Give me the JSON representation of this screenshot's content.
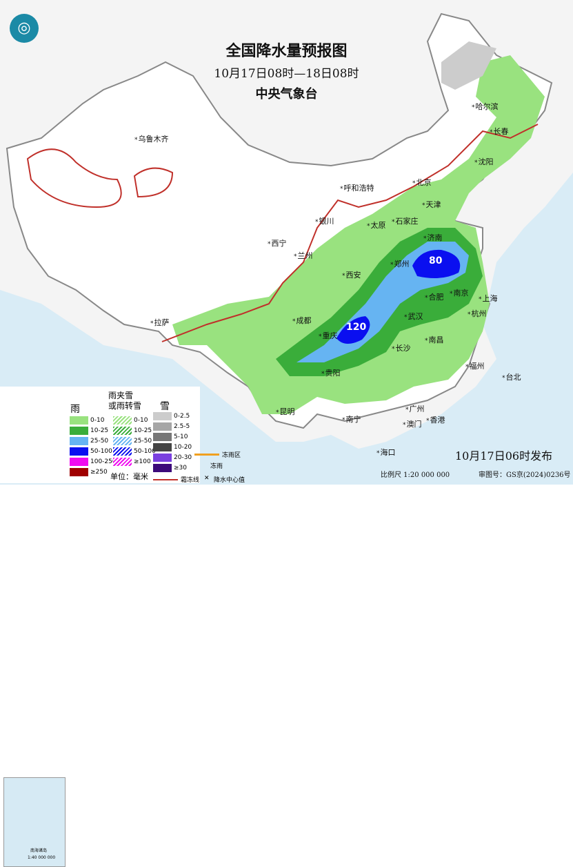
{
  "header": {
    "title": "全国降水量预报图",
    "period": "10月17日08时—18日08时",
    "agency": "中央气象台"
  },
  "footer": {
    "issued": "10月17日06时发布",
    "scale": "比例尺 1:20 000 000",
    "approval": "审图号：GS京(2024)0236号"
  },
  "cities": [
    {
      "name": "哈尔滨"
    },
    {
      "name": "长春"
    },
    {
      "name": "沈阳"
    },
    {
      "name": "乌鲁木齐"
    },
    {
      "name": "呼和浩特"
    },
    {
      "name": "北京"
    },
    {
      "name": "天津"
    },
    {
      "name": "石家庄"
    },
    {
      "name": "太原"
    },
    {
      "name": "银川"
    },
    {
      "name": "济南"
    },
    {
      "name": "西宁"
    },
    {
      "name": "兰州"
    },
    {
      "name": "郑州"
    },
    {
      "name": "西安"
    },
    {
      "name": "合肥"
    },
    {
      "name": "南京"
    },
    {
      "name": "上海"
    },
    {
      "name": "武汉"
    },
    {
      "name": "杭州"
    },
    {
      "name": "成都"
    },
    {
      "name": "重庆"
    },
    {
      "name": "长沙"
    },
    {
      "name": "南昌"
    },
    {
      "name": "拉萨"
    },
    {
      "name": "贵阳"
    },
    {
      "name": "福州"
    },
    {
      "name": "台北"
    },
    {
      "name": "昆明"
    },
    {
      "name": "南宁"
    },
    {
      "name": "广州"
    },
    {
      "name": "澳门"
    },
    {
      "name": "香港"
    },
    {
      "name": "海口"
    }
  ],
  "center_values": [
    "80",
    "120"
  ],
  "legend": {
    "rain_title": "雨",
    "mixed_title": "雨夹雪\n或雨转雪",
    "snow_title": "雪",
    "unit": "单位：毫米",
    "rain": [
      {
        "label": "0-10",
        "color": "#99e27f"
      },
      {
        "label": "10-25",
        "color": "#3aad3a"
      },
      {
        "label": "25-50",
        "color": "#66b4f2"
      },
      {
        "label": "50-100",
        "color": "#0a0ff0"
      },
      {
        "label": "100-250",
        "color": "#f00cf0"
      },
      {
        "label": "≥250",
        "color": "#a00000"
      }
    ],
    "mixed": [
      {
        "label": "0-10"
      },
      {
        "label": "10-25"
      },
      {
        "label": "25-50"
      },
      {
        "label": "50-100"
      },
      {
        "label": "≥100"
      }
    ],
    "snow": [
      {
        "label": "0-2.5",
        "color": "#cccccc"
      },
      {
        "label": "2.5-5",
        "color": "#a6a6a6"
      },
      {
        "label": "5-10",
        "color": "#777777"
      },
      {
        "label": "10-20",
        "color": "#444444"
      },
      {
        "label": "20-30",
        "color": "#7a40e0"
      },
      {
        "label": "≥30",
        "color": "#3c0a7a"
      }
    ],
    "freezing_rain_area": "冻雨区",
    "freezing_rain": "冻雨",
    "frost_line": "霜冻线",
    "precip_center": "降水中心值",
    "inset_label": "南海诸岛",
    "inset_scale": "1:40 000 000"
  }
}
